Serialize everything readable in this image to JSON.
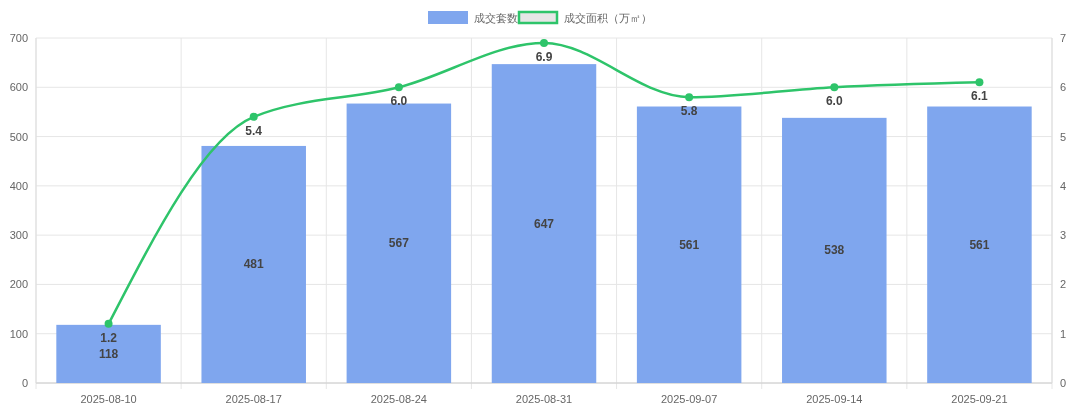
{
  "chart_data": {
    "type": "bar",
    "categories": [
      "2025-08-10",
      "2025-08-17",
      "2025-08-24",
      "2025-08-31",
      "2025-09-07",
      "2025-09-14",
      "2025-09-21"
    ],
    "series": [
      {
        "name": "成交套数",
        "color": "#7fa6ee",
        "values": [
          118,
          481,
          567,
          647,
          561,
          538,
          561
        ]
      },
      {
        "name": "成交面积（万㎡）",
        "type": "line",
        "axis": "y2",
        "color": "#2ec46a",
        "values": [
          1.2,
          5.4,
          6.0,
          6.9,
          5.8,
          6.0,
          6.1
        ],
        "value_labels": [
          "1.2",
          "5.4",
          "6.0",
          "6.9",
          "5.8",
          "6.0",
          "6.1"
        ]
      }
    ],
    "ylim": [
      0,
      700
    ],
    "yticks": [
      0,
      100,
      200,
      300,
      400,
      500,
      600,
      700
    ],
    "y2lim": [
      0,
      7
    ],
    "y2ticks": [
      0,
      1,
      2,
      3,
      4,
      5,
      6,
      7
    ],
    "grid": true,
    "legend": "top",
    "data_labels": true,
    "marker": "circle",
    "line_style": "solid"
  }
}
